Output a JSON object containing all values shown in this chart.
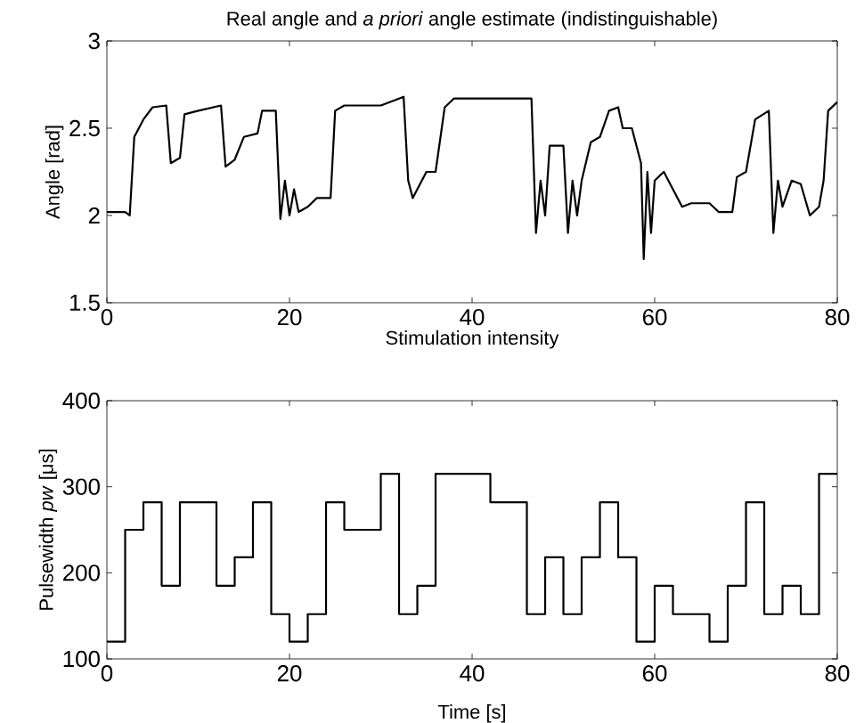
{
  "chart_data": [
    {
      "type": "line",
      "title": "Real angle and *a priori* angle estimate (indistinguishable)",
      "xlabel": "Stimulation intensity",
      "ylabel": "Angle [rad]",
      "xlim": [
        0,
        80
      ],
      "ylim": [
        1.5,
        3
      ],
      "xticks": [
        0,
        20,
        40,
        60,
        80
      ],
      "yticks": [
        1.5,
        2,
        2.5,
        3
      ],
      "color": "#000000",
      "x": [
        0,
        2,
        2.5,
        3,
        4,
        5,
        6.5,
        7,
        8,
        8.5,
        10,
        12.5,
        13,
        14,
        15,
        16.5,
        17,
        18.5,
        19,
        19.5,
        20,
        20.5,
        21,
        22,
        23,
        24.5,
        25,
        26,
        30,
        31,
        32.5,
        33,
        33.5,
        34,
        35,
        36,
        37,
        38,
        46.5,
        47,
        47.5,
        48,
        48.5,
        50,
        50.5,
        51,
        51.5,
        52,
        53,
        54,
        55,
        56,
        56.5,
        57.5,
        58.5,
        58.8,
        59.2,
        59.6,
        60,
        61,
        62,
        63,
        64,
        66,
        67,
        68.5,
        69,
        70,
        71,
        72.5,
        73,
        73.5,
        74,
        75,
        76,
        77,
        78,
        78.5,
        79,
        80
      ],
      "values": [
        2.02,
        2.02,
        2.0,
        2.45,
        2.55,
        2.62,
        2.63,
        2.3,
        2.33,
        2.58,
        2.6,
        2.63,
        2.28,
        2.32,
        2.45,
        2.47,
        2.6,
        2.6,
        1.98,
        2.2,
        2.0,
        2.15,
        2.02,
        2.05,
        2.1,
        2.1,
        2.6,
        2.63,
        2.63,
        2.65,
        2.68,
        2.2,
        2.1,
        2.15,
        2.25,
        2.25,
        2.62,
        2.67,
        2.67,
        1.9,
        2.2,
        2.0,
        2.4,
        2.4,
        1.9,
        2.2,
        2.0,
        2.2,
        2.42,
        2.45,
        2.6,
        2.62,
        2.5,
        2.5,
        2.3,
        1.75,
        2.25,
        1.9,
        2.2,
        2.25,
        2.15,
        2.05,
        2.07,
        2.07,
        2.02,
        2.02,
        2.22,
        2.25,
        2.55,
        2.6,
        1.9,
        2.2,
        2.05,
        2.2,
        2.18,
        2.0,
        2.05,
        2.2,
        2.6,
        2.65
      ]
    },
    {
      "type": "step",
      "xlabel": "Time [s]",
      "ylabel": "Pulsewidth *pw* [μs]",
      "xlim": [
        0,
        80
      ],
      "ylim": [
        100,
        400
      ],
      "xticks": [
        0,
        20,
        40,
        60,
        80
      ],
      "yticks": [
        100,
        200,
        300,
        400
      ],
      "color": "#000000",
      "x": [
        0,
        2,
        4,
        6,
        8,
        12,
        14,
        16,
        18,
        20,
        22,
        24,
        26,
        30,
        32,
        34,
        36,
        42,
        46,
        48,
        50,
        52,
        54,
        56,
        58,
        60,
        62,
        66,
        68,
        70,
        72,
        74,
        76,
        78,
        80
      ],
      "values": [
        120,
        250,
        282,
        185,
        282,
        185,
        218,
        282,
        152,
        120,
        152,
        282,
        250,
        315,
        152,
        185,
        315,
        282,
        152,
        218,
        152,
        218,
        282,
        218,
        120,
        185,
        152,
        120,
        185,
        282,
        152,
        185,
        152,
        315,
        315
      ]
    }
  ]
}
